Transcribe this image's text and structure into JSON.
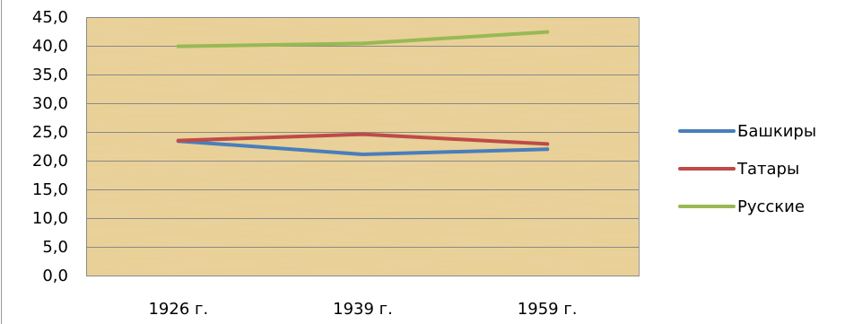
{
  "chart_data": {
    "type": "line",
    "categories": [
      "1926 г.",
      "1939 г.",
      "1959 г."
    ],
    "series": [
      {
        "name": "Башкиры",
        "values": [
          23.4,
          21.1,
          22.0
        ],
        "color": "#4a7ebb"
      },
      {
        "name": "Татары",
        "values": [
          23.5,
          24.6,
          22.9
        ],
        "color": "#be4b48"
      },
      {
        "name": "Русские",
        "values": [
          39.9,
          40.4,
          42.4
        ],
        "color": "#98b954"
      }
    ],
    "y_ticks": [
      "0,0",
      "5,0",
      "10,0",
      "15,0",
      "20,0",
      "25,0",
      "30,0",
      "35,0",
      "40,0",
      "45,0"
    ],
    "ylim": [
      0,
      45
    ],
    "grid": true,
    "legend": "right",
    "plot_background": "papyrus"
  }
}
